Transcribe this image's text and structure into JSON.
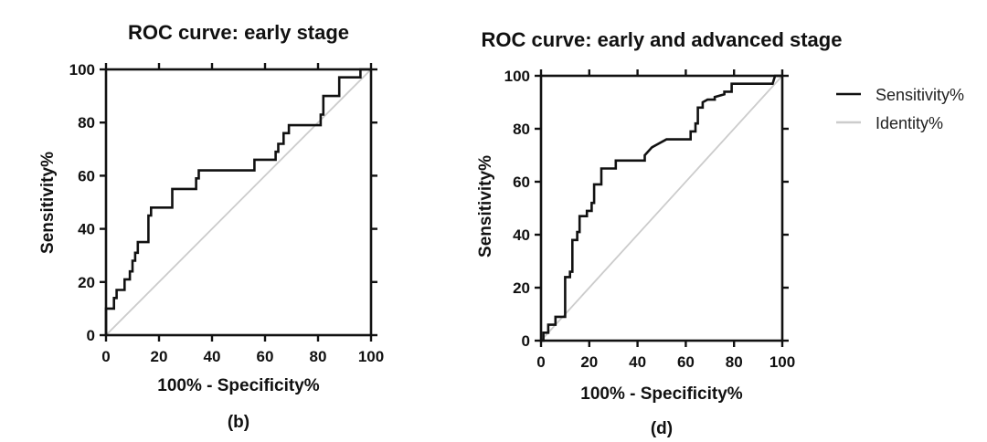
{
  "chart_data": [
    {
      "type": "line",
      "title": "ROC curve: early stage",
      "xlabel": "100% - Specificity%",
      "ylabel": "Sensitivity%",
      "panel_label": "(b)",
      "xlim": [
        0,
        100
      ],
      "ylim": [
        0,
        100
      ],
      "x_ticks": [
        "0",
        "20",
        "40",
        "60",
        "80",
        "100"
      ],
      "y_ticks": [
        "0",
        "20",
        "40",
        "60",
        "80",
        "100"
      ],
      "series": [
        {
          "name": "Sensitivity%",
          "color": "#111111",
          "points": [
            [
              0,
              0
            ],
            [
              0,
              10
            ],
            [
              3,
              10
            ],
            [
              3,
              14
            ],
            [
              4,
              14
            ],
            [
              4,
              17
            ],
            [
              7,
              17
            ],
            [
              7,
              21
            ],
            [
              9,
              21
            ],
            [
              9,
              24
            ],
            [
              10,
              24
            ],
            [
              10,
              28
            ],
            [
              11,
              28
            ],
            [
              11,
              31
            ],
            [
              12,
              31
            ],
            [
              12,
              35
            ],
            [
              16,
              35
            ],
            [
              16,
              45
            ],
            [
              17,
              45
            ],
            [
              17,
              48
            ],
            [
              25,
              48
            ],
            [
              25,
              55
            ],
            [
              34,
              55
            ],
            [
              34,
              59
            ],
            [
              35,
              59
            ],
            [
              35,
              62
            ],
            [
              56,
              62
            ],
            [
              56,
              66
            ],
            [
              64,
              66
            ],
            [
              64,
              69
            ],
            [
              65,
              69
            ],
            [
              65,
              72
            ],
            [
              67,
              72
            ],
            [
              67,
              76
            ],
            [
              69,
              76
            ],
            [
              69,
              79
            ],
            [
              81,
              79
            ],
            [
              81,
              83
            ],
            [
              82,
              83
            ],
            [
              82,
              90
            ],
            [
              88,
              90
            ],
            [
              88,
              97
            ],
            [
              96,
              97
            ],
            [
              96,
              100
            ],
            [
              100,
              100
            ]
          ]
        },
        {
          "name": "Identity%",
          "color": "#cccccc",
          "points": [
            [
              0,
              0
            ],
            [
              100,
              100
            ]
          ]
        }
      ]
    },
    {
      "type": "line",
      "title": "ROC curve: early and advanced stage",
      "xlabel": "100% - Specificity%",
      "ylabel": "Sensitivity%",
      "panel_label": "(d)",
      "xlim": [
        0,
        100
      ],
      "ylim": [
        0,
        100
      ],
      "x_ticks": [
        "0",
        "20",
        "40",
        "60",
        "80",
        "100"
      ],
      "y_ticks": [
        "0",
        "20",
        "40",
        "60",
        "80",
        "100"
      ],
      "legend": {
        "position": "right",
        "entries": [
          {
            "label": "Sensitivity%",
            "color": "#111111"
          },
          {
            "label": "Identity%",
            "color": "#cccccc"
          }
        ]
      },
      "series": [
        {
          "name": "Sensitivity%",
          "color": "#111111",
          "points": [
            [
              0,
              0
            ],
            [
              1,
              0
            ],
            [
              1,
              3
            ],
            [
              3,
              3
            ],
            [
              3,
              6
            ],
            [
              6,
              6
            ],
            [
              6,
              9
            ],
            [
              10,
              9
            ],
            [
              10,
              24
            ],
            [
              12,
              24
            ],
            [
              12,
              26
            ],
            [
              13,
              26
            ],
            [
              13,
              38
            ],
            [
              15,
              38
            ],
            [
              15,
              41
            ],
            [
              16,
              41
            ],
            [
              16,
              47
            ],
            [
              19,
              47
            ],
            [
              19,
              49
            ],
            [
              21,
              49
            ],
            [
              21,
              52
            ],
            [
              22,
              52
            ],
            [
              22,
              59
            ],
            [
              25,
              59
            ],
            [
              25,
              65
            ],
            [
              31,
              65
            ],
            [
              31,
              68
            ],
            [
              43,
              68
            ],
            [
              43,
              70
            ],
            [
              46,
              73
            ],
            [
              48,
              74
            ],
            [
              52,
              76
            ],
            [
              57,
              76
            ],
            [
              62,
              76
            ],
            [
              62,
              79
            ],
            [
              64,
              79
            ],
            [
              64,
              82
            ],
            [
              65,
              82
            ],
            [
              65,
              88
            ],
            [
              67,
              88
            ],
            [
              67,
              90
            ],
            [
              69,
              91
            ],
            [
              72,
              91
            ],
            [
              72,
              92
            ],
            [
              76,
              93
            ],
            [
              76,
              94
            ],
            [
              79,
              94
            ],
            [
              79,
              97
            ],
            [
              96,
              97
            ],
            [
              97,
              100
            ],
            [
              100,
              100
            ]
          ]
        },
        {
          "name": "Identity%",
          "color": "#cccccc",
          "points": [
            [
              0,
              0
            ],
            [
              100,
              100
            ]
          ]
        }
      ]
    }
  ]
}
